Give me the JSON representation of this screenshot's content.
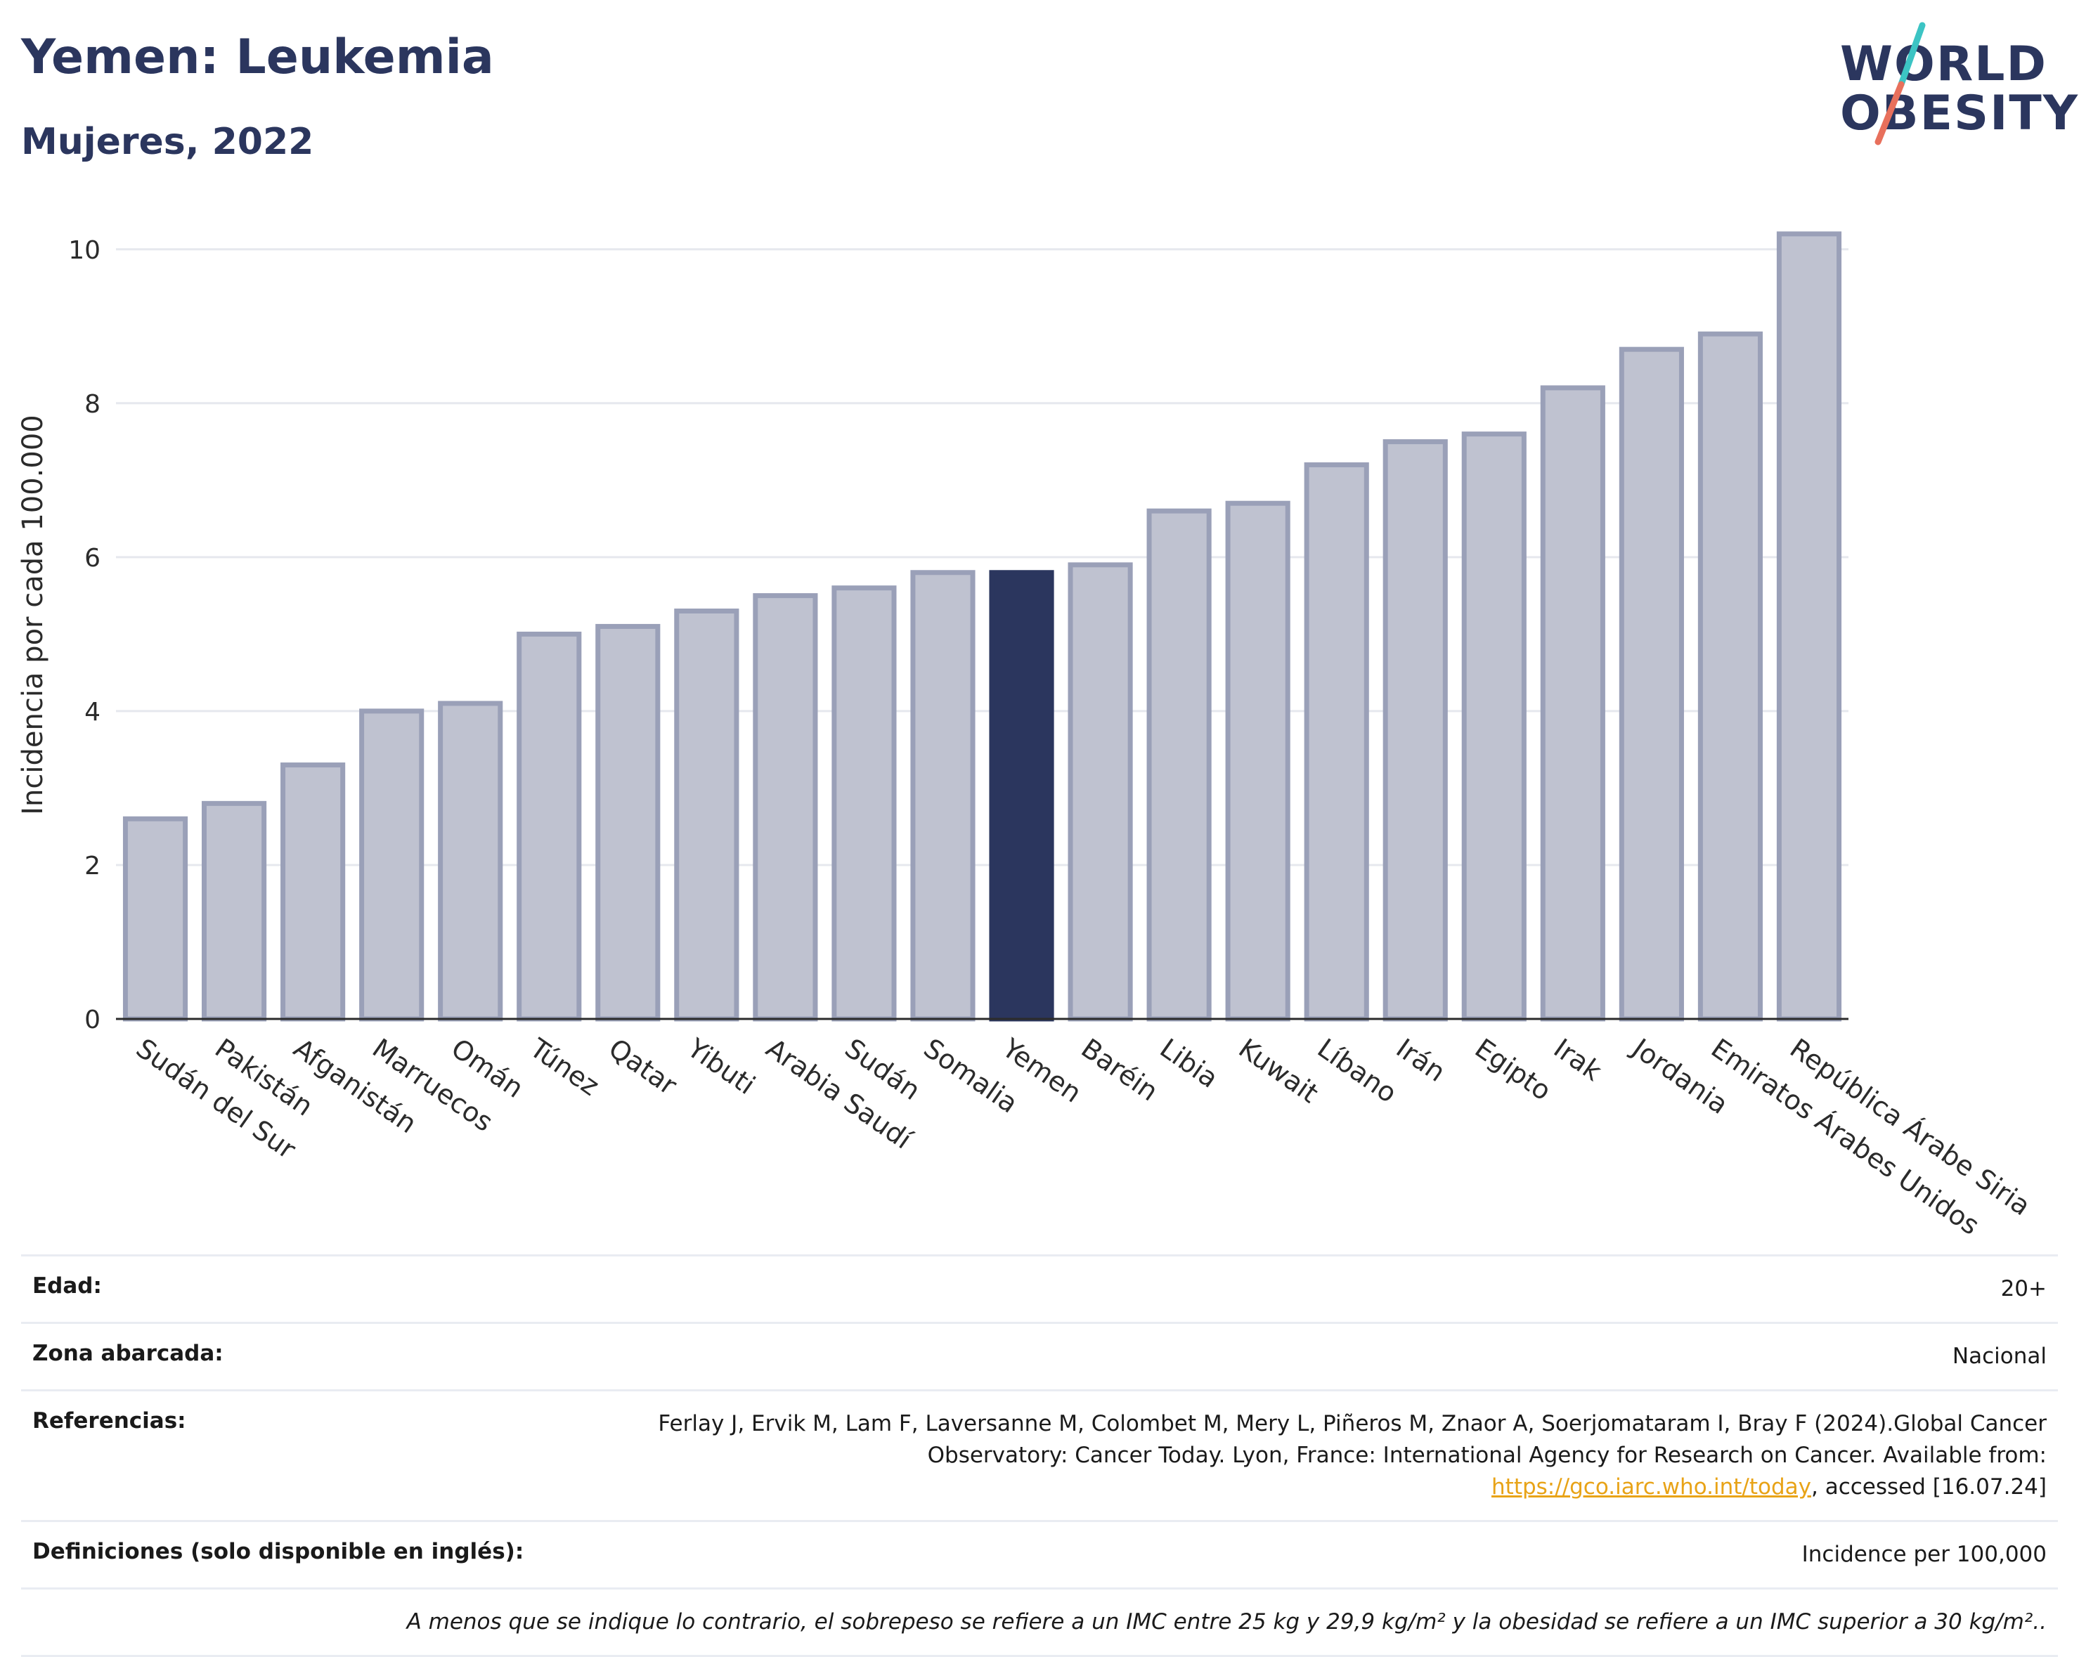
{
  "title": "Yemen: Leukemia",
  "subtitle": "Mujeres, 2022",
  "logo": {
    "line1": "WORLD",
    "line2": "OBESITY",
    "slash_colors": [
      "#3cc4c4",
      "#e8705c"
    ]
  },
  "colors": {
    "bar": "#bfc2d0",
    "bar_stroke": "#9aa0b8",
    "highlight": "#2b365e",
    "grid": "#e6e8ee"
  },
  "chart_data": {
    "type": "bar",
    "ylabel": "Incidencia por cada 100.000",
    "ylim": [
      0,
      10.5
    ],
    "yticks": [
      0,
      2,
      4,
      6,
      8,
      10
    ],
    "grid": true,
    "highlight": "Yemen",
    "categories": [
      "Sudán del Sur",
      "Pakistán",
      "Afganistán",
      "Marruecos",
      "Omán",
      "Túnez",
      "Qatar",
      "Yibuti",
      "Arabia Saudí",
      "Sudán",
      "Somalia",
      "Yemen",
      "Baréin",
      "Libia",
      "Kuwait",
      "Líbano",
      "Irán",
      "Egipto",
      "Irak",
      "Jordania",
      "Emiratos Árabes Unidos",
      "República Árabe Siria"
    ],
    "values": [
      2.6,
      2.8,
      3.3,
      4.0,
      4.1,
      5.0,
      5.1,
      5.3,
      5.5,
      5.6,
      5.8,
      5.8,
      5.9,
      6.6,
      6.7,
      7.2,
      7.5,
      7.6,
      8.2,
      8.7,
      8.9,
      10.2
    ]
  },
  "info": {
    "age_label": "Edad:",
    "age_value": "20+",
    "area_label": "Zona abarcada:",
    "area_value": "Nacional",
    "ref_label": "Referencias:",
    "ref_text_1": "Ferlay J, Ervik M, Lam F, Laversanne M, Colombet M, Mery L, Piñeros M, Znaor A, Soerjomataram I, Bray F (2024).Global Cancer Observatory: Cancer Today. Lyon, France: International Agency for Research on Cancer. Available from: ",
    "ref_link": "https://gco.iarc.who.int/today",
    "ref_text_2": ", accessed [16.07.24]",
    "def_label": "Definiciones (solo disponible en inglés):",
    "def_value": "Incidence per 100,000",
    "note": "A menos que se indique lo contrario, el sobrepeso se refiere a un IMC entre 25 kg y 29,9 kg/m² y la obesidad se refiere a un IMC superior a 30 kg/m².."
  }
}
